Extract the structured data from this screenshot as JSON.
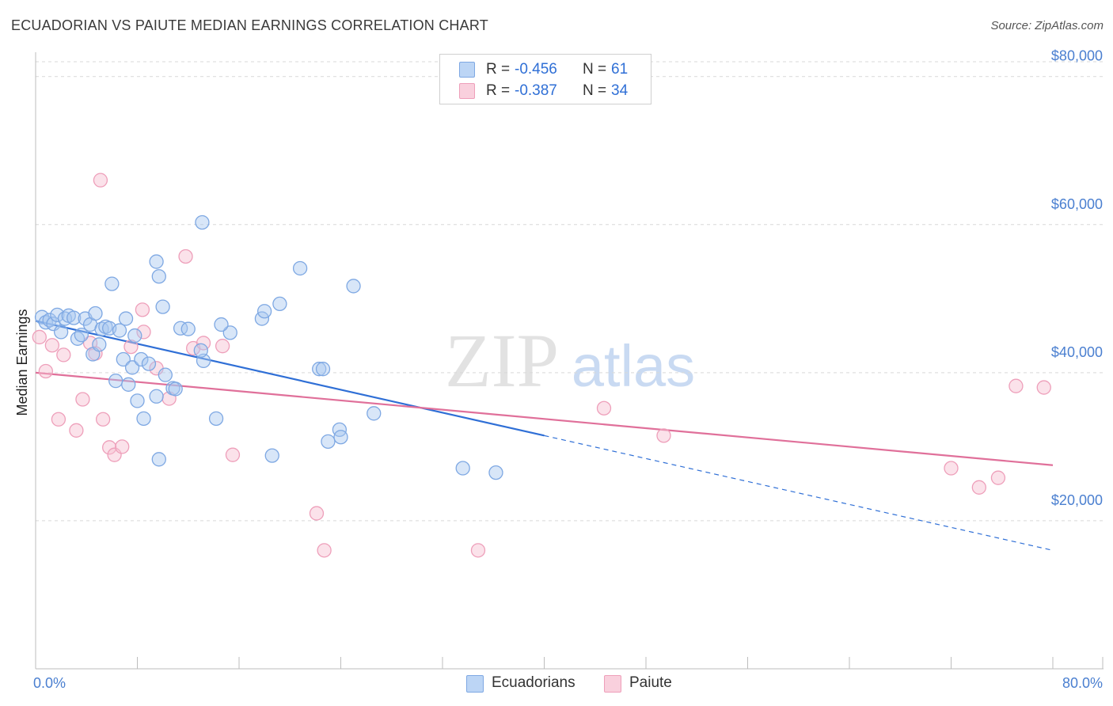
{
  "title": "ECUADORIAN VS PAIUTE MEDIAN EARNINGS CORRELATION CHART",
  "source": "Source: ZipAtlas.com",
  "watermark": {
    "zip": "ZIP",
    "atlas": "atlas"
  },
  "colors": {
    "blue": "#2f6fd6",
    "blue_fill": "#a9c8f0",
    "blue_stroke": "#7ea8e3",
    "pink": "#e0709a",
    "pink_fill": "#f6bfd0",
    "pink_stroke": "#ee9fba",
    "grid": "#d9d9d9",
    "tick": "#4a7fd0"
  },
  "legend": {
    "rows": [
      {
        "r_label": "R =",
        "r_value": "-0.456",
        "n_label": "N =",
        "n_value": "61"
      },
      {
        "r_label": "R =",
        "r_value": "-0.387",
        "n_label": "N =",
        "n_value": "34"
      }
    ]
  },
  "bottom_legend": {
    "ecuadorians": "Ecuadorians",
    "paiute": "Paiute"
  },
  "chart_data": {
    "type": "scatter",
    "title": "ECUADORIAN VS PAIUTE MEDIAN EARNINGS CORRELATION CHART",
    "xlabel": "",
    "ylabel": "Median Earnings",
    "xlim": [
      0,
      80
    ],
    "ylim": [
      0,
      82000
    ],
    "x_tick_labels": [
      "0.0%",
      "80.0%"
    ],
    "y_ticks": [
      {
        "value": 20000,
        "label": "$20,000"
      },
      {
        "value": 40000,
        "label": "$40,000"
      },
      {
        "value": 60000,
        "label": "$60,000"
      },
      {
        "value": 80000,
        "label": "$80,000"
      }
    ],
    "series": [
      {
        "name": "Ecuadorians",
        "r": -0.456,
        "n": 61,
        "trend": {
          "x0": 0,
          "y0": 47000,
          "x1": 40,
          "y1": 31500,
          "x_dash_end": 80,
          "y_dash_end": 16000
        },
        "points": [
          [
            0.5,
            47500
          ],
          [
            0.8,
            46800
          ],
          [
            1.1,
            47100
          ],
          [
            1.4,
            46600
          ],
          [
            1.7,
            47800
          ],
          [
            2.0,
            45500
          ],
          [
            2.3,
            47300
          ],
          [
            2.6,
            47700
          ],
          [
            3.0,
            47400
          ],
          [
            3.3,
            44600
          ],
          [
            3.6,
            45100
          ],
          [
            3.9,
            47300
          ],
          [
            4.3,
            46500
          ],
          [
            4.5,
            42500
          ],
          [
            4.7,
            48000
          ],
          [
            5.0,
            43800
          ],
          [
            5.2,
            45900
          ],
          [
            5.5,
            46200
          ],
          [
            5.8,
            46000
          ],
          [
            6.0,
            52000
          ],
          [
            6.3,
            38900
          ],
          [
            6.6,
            45700
          ],
          [
            6.9,
            41800
          ],
          [
            7.1,
            47300
          ],
          [
            7.3,
            38400
          ],
          [
            7.6,
            40700
          ],
          [
            7.8,
            45000
          ],
          [
            8.0,
            36200
          ],
          [
            8.3,
            41800
          ],
          [
            8.5,
            33800
          ],
          [
            8.9,
            41200
          ],
          [
            9.5,
            36800
          ],
          [
            9.7,
            28300
          ],
          [
            10.0,
            48900
          ],
          [
            10.2,
            39700
          ],
          [
            10.8,
            37900
          ],
          [
            11.0,
            37800
          ],
          [
            11.4,
            46000
          ],
          [
            12.0,
            45900
          ],
          [
            13.2,
            41600
          ],
          [
            14.2,
            33800
          ],
          [
            15.3,
            45400
          ],
          [
            17.8,
            47300
          ],
          [
            18.0,
            48300
          ],
          [
            18.6,
            28800
          ],
          [
            19.2,
            49300
          ],
          [
            20.8,
            54100
          ],
          [
            22.3,
            40500
          ],
          [
            22.6,
            40500
          ],
          [
            23.0,
            30700
          ],
          [
            23.9,
            32300
          ],
          [
            24.0,
            31300
          ],
          [
            25.0,
            51700
          ],
          [
            26.6,
            34500
          ],
          [
            9.5,
            55000
          ],
          [
            9.7,
            53000
          ],
          [
            13.1,
            60300
          ],
          [
            13.0,
            43000
          ],
          [
            14.6,
            46500
          ],
          [
            33.6,
            27100
          ],
          [
            36.2,
            26500
          ]
        ]
      },
      {
        "name": "Paiute",
        "r": -0.387,
        "n": 34,
        "trend": {
          "x0": 0,
          "y0": 40000,
          "x1": 80,
          "y1": 27500
        },
        "points": [
          [
            0.3,
            44800
          ],
          [
            0.8,
            40200
          ],
          [
            1.3,
            43700
          ],
          [
            1.8,
            33700
          ],
          [
            2.2,
            42400
          ],
          [
            3.2,
            32200
          ],
          [
            3.7,
            36400
          ],
          [
            4.3,
            44000
          ],
          [
            4.7,
            42600
          ],
          [
            5.1,
            66000
          ],
          [
            5.3,
            33700
          ],
          [
            5.8,
            29900
          ],
          [
            6.2,
            28900
          ],
          [
            6.8,
            30000
          ],
          [
            7.5,
            43500
          ],
          [
            8.4,
            48500
          ],
          [
            8.5,
            45500
          ],
          [
            9.5,
            40600
          ],
          [
            10.5,
            36500
          ],
          [
            11.8,
            55700
          ],
          [
            12.4,
            43300
          ],
          [
            13.2,
            44000
          ],
          [
            14.7,
            43600
          ],
          [
            15.5,
            28900
          ],
          [
            22.1,
            21000
          ],
          [
            22.7,
            16000
          ],
          [
            34.8,
            16000
          ],
          [
            44.7,
            35200
          ],
          [
            49.4,
            31500
          ],
          [
            72.0,
            27100
          ],
          [
            74.2,
            24500
          ],
          [
            75.7,
            25800
          ],
          [
            77.1,
            38200
          ],
          [
            79.3,
            38000
          ]
        ]
      }
    ]
  }
}
